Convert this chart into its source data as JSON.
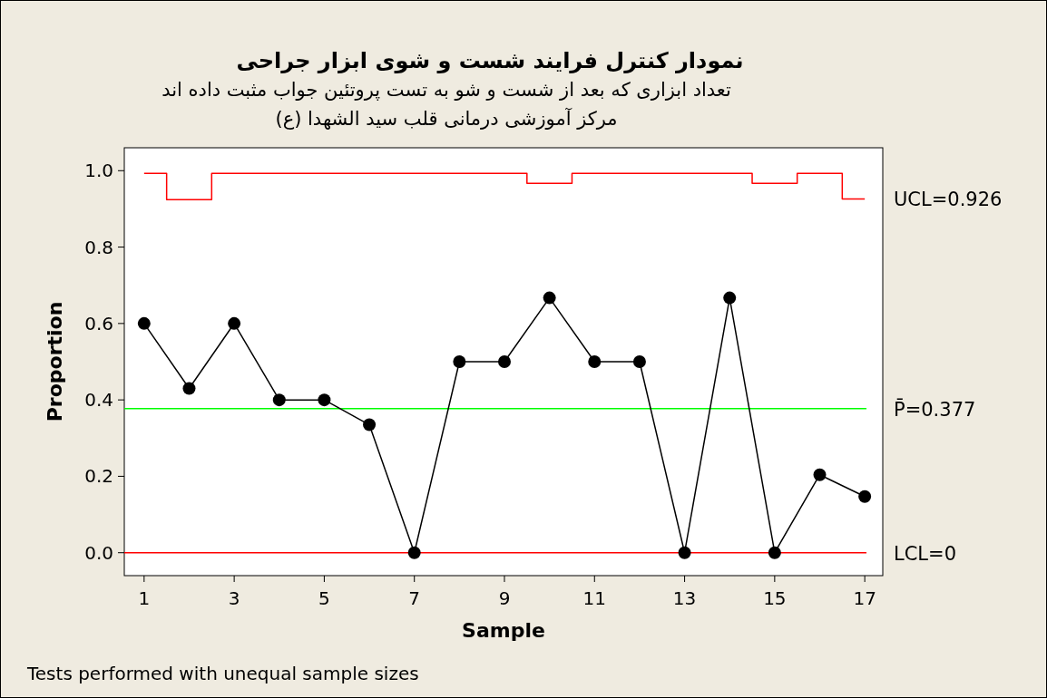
{
  "chart_data": {
    "type": "line",
    "title": "نمودار کنترل فرایند شست و شوی ابزار جراحی",
    "subtitle": "تعداد ابزاری که بعد از شست و شو به تست پروتئین جواب مثبت داده اند\nمرکز آموزشی درمانی قلب سید الشهدا (ع)",
    "xlabel": "Sample",
    "ylabel": "Proportion",
    "x": [
      1,
      2,
      3,
      4,
      5,
      6,
      7,
      8,
      9,
      10,
      11,
      12,
      13,
      14,
      15,
      16,
      17
    ],
    "series": [
      {
        "color": "#000000",
        "marker": "circle",
        "values": [
          0.6,
          0.43,
          0.6,
          0.4,
          0.4,
          0.335,
          0,
          0.5,
          0.5,
          0.667,
          0.5,
          0.5,
          0,
          0.667,
          0,
          0.204,
          0.147
        ]
      },
      {
        "type": "step",
        "name": "UCL=0.926",
        "color": "#ff0000",
        "marker": "none",
        "values": [
          0.993,
          0.924,
          0.993,
          0.993,
          0.993,
          0.993,
          0.993,
          0.993,
          0.993,
          0.967,
          0.993,
          0.993,
          0.993,
          0.993,
          0.967,
          0.993,
          0.926
        ]
      }
    ],
    "ref_lines": [
      {
        "axis": "y",
        "value": 0.377,
        "label": "P̄=0.377",
        "color": "#00ff00"
      },
      {
        "axis": "y",
        "value": 0,
        "label": "LCL=0",
        "color": "#ff0000"
      }
    ],
    "xlim": [
      0.56,
      17.4
    ],
    "ylim": [
      -0.06,
      1.06
    ],
    "xticks": [
      1,
      3,
      5,
      7,
      9,
      11,
      13,
      15,
      17
    ],
    "yticks": [
      {
        "value": 0,
        "label": "0.0"
      },
      {
        "value": 0.2,
        "label": "0.2"
      },
      {
        "value": 0.4,
        "label": "0.4"
      },
      {
        "value": 0.6,
        "label": "0.6"
      },
      {
        "value": 0.8,
        "label": "0.8"
      },
      {
        "value": 1,
        "label": "1.0"
      }
    ],
    "grid": false,
    "annotations": [
      "Tests performed with unequal sample sizes"
    ]
  }
}
